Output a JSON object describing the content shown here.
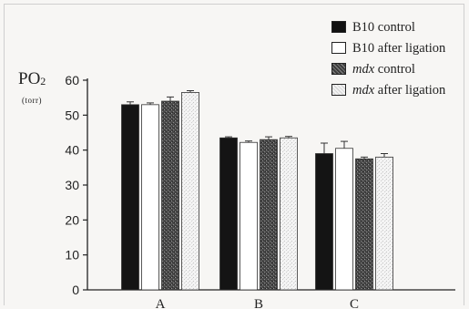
{
  "chart_data": {
    "type": "bar",
    "title": "",
    "ylabel": "PO2",
    "ylabel_main": "PO",
    "ylabel_subscript": "2",
    "yunit": "(torr)",
    "xlabel": "",
    "ylim": [
      0,
      60
    ],
    "yticks": [
      "0",
      "10",
      "20",
      "30",
      "40",
      "50",
      "60"
    ],
    "grid": false,
    "legend_position": "top-right",
    "categories": [
      "A",
      "B",
      "C"
    ],
    "series": [
      {
        "name": "B10 control",
        "name_italic": "",
        "name_rest": "B10 control",
        "fill": "solid-black",
        "values": [
          53,
          43.5,
          39
        ],
        "errors": [
          0.8,
          0.3,
          3
        ]
      },
      {
        "name": "B10 after ligation",
        "name_italic": "",
        "name_rest": "B10 after ligation",
        "fill": "white",
        "values": [
          53,
          42.2,
          40.5
        ],
        "errors": [
          0.5,
          0.4,
          2
        ]
      },
      {
        "name": "mdx control",
        "name_italic": "mdx",
        "name_rest": " control",
        "fill": "dark-speckled",
        "values": [
          54,
          43,
          37.5
        ],
        "errors": [
          1.2,
          0.8,
          0.5
        ]
      },
      {
        "name": "mdx after ligation",
        "name_italic": "mdx",
        "name_rest": " after ligation",
        "fill": "light-speckled",
        "values": [
          56.5,
          43.5,
          38
        ],
        "errors": [
          0.5,
          0.4,
          1
        ]
      }
    ]
  }
}
